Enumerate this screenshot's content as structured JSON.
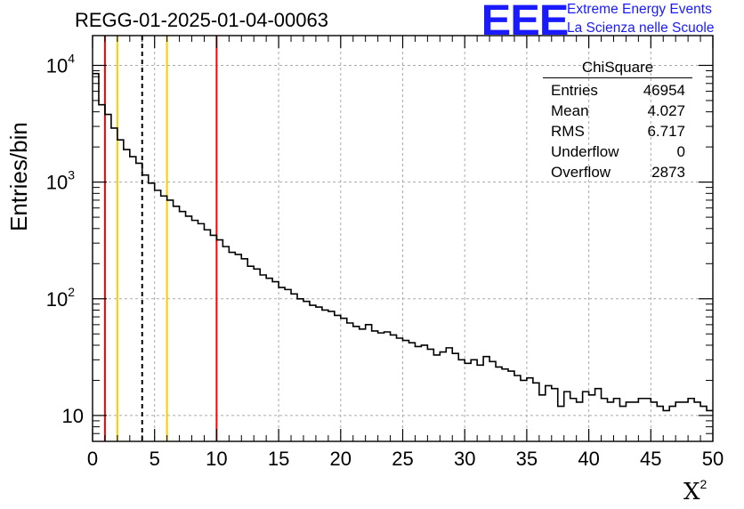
{
  "title": "REGG-01-2025-01-04-00063",
  "logo": {
    "mark": "EEE",
    "line1": "Extreme Energy Events",
    "line2": "La Scienza nelle Scuole",
    "color": "#1a1aff"
  },
  "stats": {
    "title": "ChiSquare",
    "rows": [
      {
        "label": "Entries",
        "value": "46954"
      },
      {
        "label": "Mean",
        "value": "4.027"
      },
      {
        "label": "RMS",
        "value": "6.717"
      },
      {
        "label": "Underflow",
        "value": "0"
      },
      {
        "label": "Overflow",
        "value": "2873"
      }
    ]
  },
  "chart_data": {
    "type": "histogram",
    "title": "REGG-01-2025-01-04-00063",
    "xlabel": "X",
    "xlabel_sup": "2",
    "ylabel": "Entries/bin",
    "xlim": [
      0,
      50
    ],
    "ylim": [
      6,
      18000
    ],
    "yscale": "log",
    "grid": true,
    "bin_width": 0.5,
    "x_ticks": [
      "0",
      "5",
      "10",
      "15",
      "20",
      "25",
      "30",
      "35",
      "40",
      "45",
      "50"
    ],
    "y_ticks": [
      {
        "value": 10,
        "base": "10",
        "exp": ""
      },
      {
        "value": 100,
        "base": "10",
        "exp": "2"
      },
      {
        "value": 1000,
        "base": "10",
        "exp": "3"
      },
      {
        "value": 10000,
        "base": "10",
        "exp": "4"
      }
    ],
    "values": [
      8500,
      4600,
      3800,
      2900,
      2300,
      1900,
      1650,
      1450,
      1150,
      980,
      850,
      760,
      700,
      620,
      560,
      510,
      470,
      440,
      390,
      350,
      320,
      280,
      250,
      240,
      220,
      190,
      180,
      160,
      150,
      140,
      125,
      120,
      110,
      100,
      95,
      88,
      85,
      80,
      78,
      72,
      68,
      62,
      58,
      55,
      60,
      53,
      51,
      52,
      49,
      46,
      44,
      42,
      39,
      40,
      37,
      33,
      35,
      38,
      34,
      30,
      28,
      30,
      27,
      32,
      29,
      26,
      25,
      24,
      22,
      20,
      21,
      19,
      15,
      18,
      17,
      12,
      16,
      14,
      13,
      16,
      15,
      17,
      14,
      13,
      14,
      12,
      13,
      13,
      14,
      14,
      13,
      12,
      11,
      12,
      13,
      13,
      14,
      13,
      12,
      11
    ],
    "lines": [
      {
        "x": 1,
        "color": "#ff0000",
        "style": "solid"
      },
      {
        "x": 2,
        "color": "#ffcc00",
        "style": "solid"
      },
      {
        "x": 4,
        "color": "#000000",
        "style": "dashed"
      },
      {
        "x": 6,
        "color": "#ffcc00",
        "style": "solid"
      },
      {
        "x": 10,
        "color": "#ff0000",
        "style": "solid"
      }
    ]
  }
}
